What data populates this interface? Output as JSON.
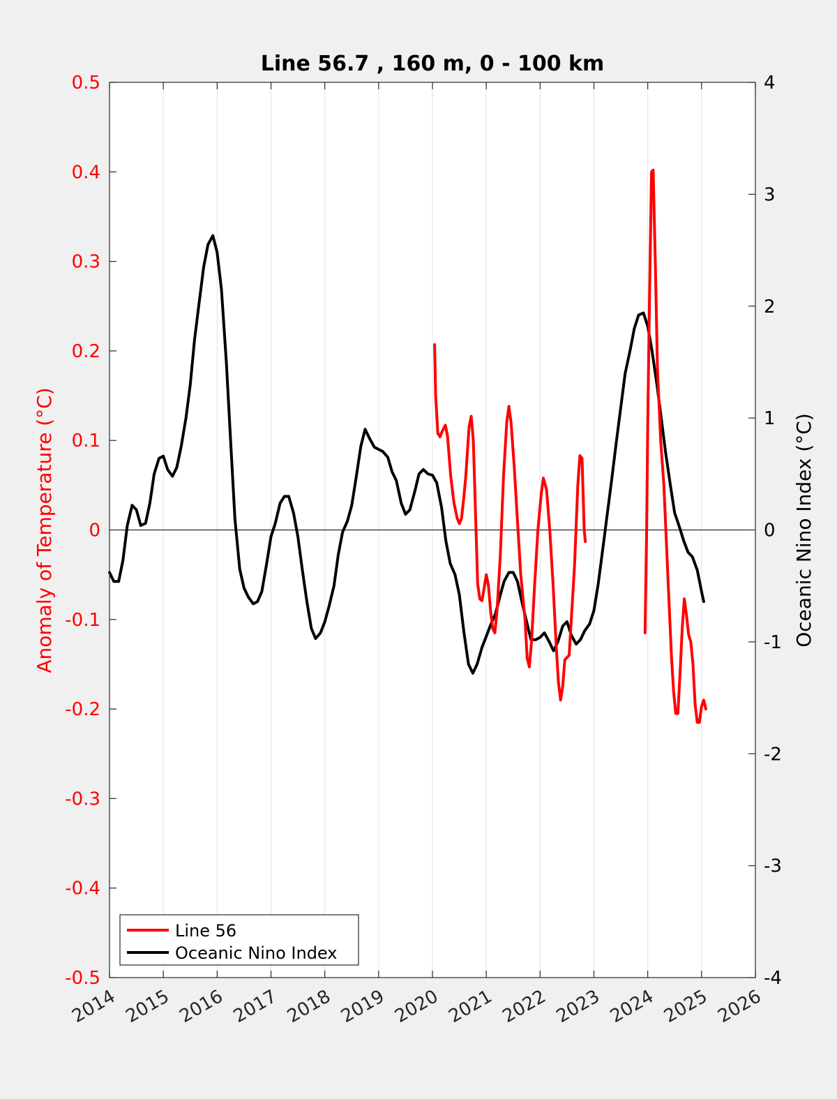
{
  "chart_data": {
    "type": "line",
    "title": "Line 56.7 , 160 m, 0 - 100 km",
    "xlabel": "",
    "ylabel_left": "Anomaly of Temperature (°C)",
    "ylabel_right": "Oceanic Nino Index (°C)",
    "xlim": [
      2014,
      2026
    ],
    "ylim_left": [
      -0.5,
      0.5
    ],
    "ylim_right": [
      -4,
      4
    ],
    "x_ticks": [
      "2014",
      "2015",
      "2016",
      "2017",
      "2018",
      "2019",
      "2020",
      "2021",
      "2022",
      "2023",
      "2024",
      "2025",
      "2026"
    ],
    "y_left_ticks": [
      "0.5",
      "0.4",
      "0.3",
      "0.2",
      "0.1",
      "0",
      "-0.1",
      "-0.2",
      "-0.3",
      "-0.4",
      "-0.5"
    ],
    "y_right_ticks": [
      "4",
      "3",
      "2",
      "1",
      "0",
      "-1",
      "-2",
      "-3",
      "-4"
    ],
    "grid": "vertical",
    "legend_position": "bottom-left",
    "colors": {
      "line56": "#ff0000",
      "oni": "#000000",
      "left_axis": "#ff0000",
      "right_axis": "#000000"
    },
    "series": [
      {
        "name": "Line 56",
        "axis": "left",
        "color": "#ff0000",
        "segments": [
          [
            [
              2020.04,
              0.207
            ],
            [
              2020.06,
              0.15
            ],
            [
              2020.1,
              0.108
            ],
            [
              2020.14,
              0.104
            ],
            [
              2020.18,
              0.11
            ],
            [
              2020.24,
              0.117
            ],
            [
              2020.28,
              0.105
            ],
            [
              2020.34,
              0.06
            ],
            [
              2020.4,
              0.03
            ],
            [
              2020.46,
              0.013
            ],
            [
              2020.5,
              0.007
            ],
            [
              2020.54,
              0.013
            ],
            [
              2020.58,
              0.035
            ],
            [
              2020.62,
              0.06
            ],
            [
              2020.68,
              0.115
            ],
            [
              2020.72,
              0.127
            ],
            [
              2020.76,
              0.1
            ],
            [
              2020.8,
              0.02
            ],
            [
              2020.84,
              -0.06
            ],
            [
              2020.88,
              -0.077
            ],
            [
              2020.92,
              -0.079
            ],
            [
              2020.96,
              -0.065
            ],
            [
              2021.0,
              -0.05
            ],
            [
              2021.04,
              -0.062
            ],
            [
              2021.08,
              -0.09
            ],
            [
              2021.12,
              -0.11
            ],
            [
              2021.16,
              -0.115
            ],
            [
              2021.2,
              -0.09
            ],
            [
              2021.26,
              -0.03
            ],
            [
              2021.32,
              0.06
            ],
            [
              2021.38,
              0.12
            ],
            [
              2021.42,
              0.138
            ],
            [
              2021.46,
              0.12
            ],
            [
              2021.52,
              0.07
            ],
            [
              2021.58,
              0.01
            ],
            [
              2021.64,
              -0.05
            ],
            [
              2021.72,
              -0.1
            ],
            [
              2021.76,
              -0.143
            ],
            [
              2021.8,
              -0.153
            ],
            [
              2021.84,
              -0.125
            ],
            [
              2021.9,
              -0.06
            ],
            [
              2021.96,
              0.0
            ],
            [
              2022.02,
              0.04
            ],
            [
              2022.06,
              0.058
            ],
            [
              2022.12,
              0.045
            ],
            [
              2022.18,
              0.0
            ],
            [
              2022.24,
              -0.06
            ],
            [
              2022.3,
              -0.13
            ],
            [
              2022.34,
              -0.17
            ],
            [
              2022.38,
              -0.19
            ],
            [
              2022.42,
              -0.175
            ],
            [
              2022.46,
              -0.145
            ],
            [
              2022.54,
              -0.14
            ],
            [
              2022.58,
              -0.1
            ],
            [
              2022.64,
              -0.04
            ],
            [
              2022.7,
              0.05
            ],
            [
              2022.74,
              0.083
            ],
            [
              2022.78,
              0.08
            ],
            [
              2022.82,
              0.0
            ],
            [
              2022.84,
              -0.013
            ]
          ],
          [
            [
              2023.95,
              -0.115
            ],
            [
              2023.98,
              0.0
            ],
            [
              2024.0,
              0.12
            ],
            [
              2024.03,
              0.25
            ],
            [
              2024.07,
              0.4
            ],
            [
              2024.1,
              0.402
            ],
            [
              2024.14,
              0.3
            ],
            [
              2024.18,
              0.18
            ],
            [
              2024.24,
              0.1
            ],
            [
              2024.3,
              0.05
            ],
            [
              2024.38,
              -0.06
            ],
            [
              2024.44,
              -0.14
            ],
            [
              2024.48,
              -0.18
            ],
            [
              2024.52,
              -0.205
            ],
            [
              2024.56,
              -0.205
            ],
            [
              2024.6,
              -0.16
            ],
            [
              2024.64,
              -0.11
            ],
            [
              2024.68,
              -0.077
            ],
            [
              2024.72,
              -0.095
            ],
            [
              2024.76,
              -0.117
            ],
            [
              2024.8,
              -0.125
            ],
            [
              2024.84,
              -0.15
            ],
            [
              2024.88,
              -0.195
            ],
            [
              2024.92,
              -0.215
            ],
            [
              2024.96,
              -0.215
            ],
            [
              2025.0,
              -0.197
            ],
            [
              2025.04,
              -0.19
            ],
            [
              2025.08,
              -0.2
            ]
          ]
        ]
      },
      {
        "name": "Oceanic Nino Index",
        "axis": "right",
        "color": "#000000",
        "points": [
          [
            2014.0,
            -0.38
          ],
          [
            2014.08,
            -0.46
          ],
          [
            2014.17,
            -0.46
          ],
          [
            2014.25,
            -0.27
          ],
          [
            2014.33,
            0.04
          ],
          [
            2014.42,
            0.22
          ],
          [
            2014.5,
            0.18
          ],
          [
            2014.58,
            0.04
          ],
          [
            2014.67,
            0.06
          ],
          [
            2014.75,
            0.24
          ],
          [
            2014.83,
            0.5
          ],
          [
            2014.92,
            0.64
          ],
          [
            2015.0,
            0.66
          ],
          [
            2015.08,
            0.54
          ],
          [
            2015.17,
            0.48
          ],
          [
            2015.25,
            0.56
          ],
          [
            2015.33,
            0.74
          ],
          [
            2015.42,
            1.0
          ],
          [
            2015.5,
            1.3
          ],
          [
            2015.58,
            1.7
          ],
          [
            2015.67,
            2.05
          ],
          [
            2015.75,
            2.35
          ],
          [
            2015.83,
            2.55
          ],
          [
            2015.92,
            2.63
          ],
          [
            2016.0,
            2.48
          ],
          [
            2016.08,
            2.15
          ],
          [
            2016.17,
            1.5
          ],
          [
            2016.25,
            0.8
          ],
          [
            2016.33,
            0.1
          ],
          [
            2016.42,
            -0.35
          ],
          [
            2016.5,
            -0.52
          ],
          [
            2016.58,
            -0.6
          ],
          [
            2016.67,
            -0.66
          ],
          [
            2016.75,
            -0.64
          ],
          [
            2016.83,
            -0.55
          ],
          [
            2016.92,
            -0.3
          ],
          [
            2017.0,
            -0.06
          ],
          [
            2017.08,
            0.06
          ],
          [
            2017.17,
            0.24
          ],
          [
            2017.25,
            0.3
          ],
          [
            2017.33,
            0.3
          ],
          [
            2017.42,
            0.15
          ],
          [
            2017.5,
            -0.06
          ],
          [
            2017.58,
            -0.35
          ],
          [
            2017.67,
            -0.65
          ],
          [
            2017.75,
            -0.88
          ],
          [
            2017.83,
            -0.97
          ],
          [
            2017.92,
            -0.92
          ],
          [
            2018.0,
            -0.82
          ],
          [
            2018.08,
            -0.68
          ],
          [
            2018.17,
            -0.5
          ],
          [
            2018.25,
            -0.22
          ],
          [
            2018.33,
            -0.02
          ],
          [
            2018.42,
            0.08
          ],
          [
            2018.5,
            0.22
          ],
          [
            2018.58,
            0.46
          ],
          [
            2018.67,
            0.75
          ],
          [
            2018.75,
            0.9
          ],
          [
            2018.83,
            0.82
          ],
          [
            2018.92,
            0.74
          ],
          [
            2019.0,
            0.72
          ],
          [
            2019.08,
            0.7
          ],
          [
            2019.17,
            0.65
          ],
          [
            2019.25,
            0.52
          ],
          [
            2019.33,
            0.44
          ],
          [
            2019.42,
            0.24
          ],
          [
            2019.5,
            0.14
          ],
          [
            2019.58,
            0.18
          ],
          [
            2019.67,
            0.34
          ],
          [
            2019.75,
            0.5
          ],
          [
            2019.83,
            0.54
          ],
          [
            2019.92,
            0.5
          ],
          [
            2020.0,
            0.49
          ],
          [
            2020.08,
            0.42
          ],
          [
            2020.17,
            0.2
          ],
          [
            2020.25,
            -0.1
          ],
          [
            2020.33,
            -0.3
          ],
          [
            2020.42,
            -0.4
          ],
          [
            2020.5,
            -0.58
          ],
          [
            2020.58,
            -0.9
          ],
          [
            2020.67,
            -1.2
          ],
          [
            2020.75,
            -1.28
          ],
          [
            2020.83,
            -1.2
          ],
          [
            2020.92,
            -1.05
          ],
          [
            2021.0,
            -0.95
          ],
          [
            2021.08,
            -0.85
          ],
          [
            2021.17,
            -0.75
          ],
          [
            2021.25,
            -0.6
          ],
          [
            2021.33,
            -0.46
          ],
          [
            2021.42,
            -0.38
          ],
          [
            2021.5,
            -0.38
          ],
          [
            2021.58,
            -0.46
          ],
          [
            2021.67,
            -0.66
          ],
          [
            2021.75,
            -0.82
          ],
          [
            2021.83,
            -0.98
          ],
          [
            2021.92,
            -0.98
          ],
          [
            2022.0,
            -0.96
          ],
          [
            2022.08,
            -0.92
          ],
          [
            2022.17,
            -1.0
          ],
          [
            2022.25,
            -1.08
          ],
          [
            2022.33,
            -1.0
          ],
          [
            2022.42,
            -0.86
          ],
          [
            2022.5,
            -0.82
          ],
          [
            2022.58,
            -0.94
          ],
          [
            2022.67,
            -1.02
          ],
          [
            2022.75,
            -0.98
          ],
          [
            2022.83,
            -0.9
          ],
          [
            2022.92,
            -0.84
          ],
          [
            2023.0,
            -0.72
          ],
          [
            2023.08,
            -0.48
          ],
          [
            2023.17,
            -0.15
          ],
          [
            2023.25,
            0.15
          ],
          [
            2023.33,
            0.45
          ],
          [
            2023.42,
            0.8
          ],
          [
            2023.5,
            1.1
          ],
          [
            2023.58,
            1.4
          ],
          [
            2023.67,
            1.6
          ],
          [
            2023.75,
            1.8
          ],
          [
            2023.83,
            1.92
          ],
          [
            2023.92,
            1.94
          ],
          [
            2024.0,
            1.82
          ],
          [
            2024.08,
            1.6
          ],
          [
            2024.17,
            1.3
          ],
          [
            2024.25,
            1.0
          ],
          [
            2024.33,
            0.7
          ],
          [
            2024.42,
            0.4
          ],
          [
            2024.5,
            0.15
          ],
          [
            2024.58,
            0.04
          ],
          [
            2024.67,
            -0.1
          ],
          [
            2024.75,
            -0.2
          ],
          [
            2024.83,
            -0.24
          ],
          [
            2024.92,
            -0.36
          ],
          [
            2025.0,
            -0.55
          ],
          [
            2025.04,
            -0.64
          ]
        ]
      }
    ]
  }
}
